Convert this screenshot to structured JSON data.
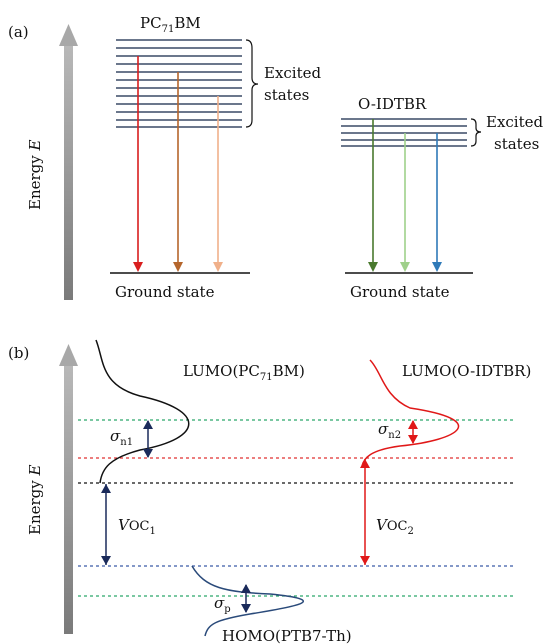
{
  "panel_a": {
    "label": "(a)",
    "axis_label_prefix": "Energy ",
    "axis_label_var": "E",
    "pcbm": {
      "name_prefix": "PC",
      "name_sub": "71",
      "name_suffix": "BM",
      "excited_label_line1": "Excited",
      "excited_label_line2": "states",
      "ground_label": "Ground state",
      "arrow_colors": [
        "#d91e1e",
        "#b5662c",
        "#f0b08a"
      ]
    },
    "oidtbr": {
      "name": "O-IDTBR",
      "excited_label_line1": "Excited",
      "excited_label_line2": "states",
      "ground_label": "Ground state",
      "arrow_colors": [
        "#4a7a2e",
        "#9fd08a",
        "#2f7ab8"
      ]
    },
    "level_color": "#3a4a66"
  },
  "panel_b": {
    "label": "(b)",
    "axis_label_prefix": "Energy ",
    "axis_label_var": "E",
    "lumo_pcbm_prefix": "LUMO(PC",
    "lumo_pcbm_sub": "71",
    "lumo_pcbm_suffix": "BM)",
    "lumo_oidtbr": "LUMO(O-IDTBR)",
    "homo": "HOMO(PTB7-Th)",
    "sigma": "σ",
    "sigma_n1_sub": "n1",
    "sigma_n2_sub": "n2",
    "sigma_p_sub": "p",
    "voc_prefix": "V",
    "voc1_mid": "OC",
    "voc1_sub": "1",
    "voc2_mid": "OC",
    "voc2_sub": "2",
    "colors": {
      "green_dotted": "#2aa86b",
      "red_dotted": "#e03030",
      "black_dotted": "#111111",
      "blue_dotted": "#3a5aa8",
      "navy_arrow": "#1a2a5a",
      "red_curve": "#e01818",
      "blue_curve": "#2a4a7a"
    }
  }
}
